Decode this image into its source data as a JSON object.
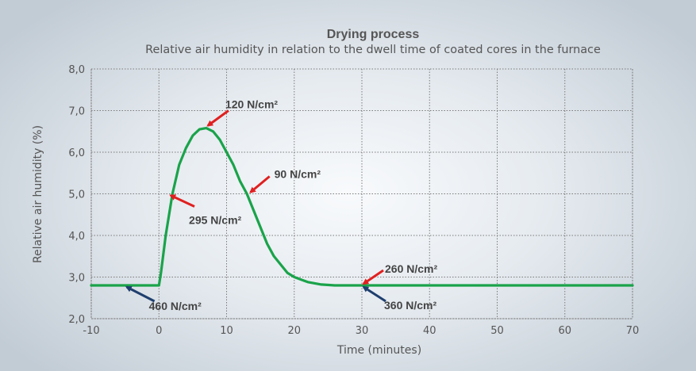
{
  "chart_data": {
    "type": "line",
    "title": "Drying process",
    "subtitle": "Relative air humidity in relation to the dwell time of coated cores in the furnace",
    "xlabel": "Time (minutes)",
    "ylabel": "Relative air humidity (%)",
    "xlim": [
      -10,
      70
    ],
    "ylim": [
      2.0,
      8.0
    ],
    "x_ticks": [
      -10,
      0,
      10,
      20,
      30,
      40,
      50,
      60,
      70
    ],
    "y_ticks": [
      "2,0",
      "3,0",
      "4,0",
      "5,0",
      "6,0",
      "7,0",
      "8,0"
    ],
    "grid": true,
    "line_color": "#1aa34a",
    "series": [
      {
        "x": [
          -10,
          0,
          0.3,
          1,
          2,
          3,
          4,
          5,
          6,
          7,
          8,
          9,
          10,
          11,
          12,
          13,
          14,
          15,
          16,
          17,
          18,
          19,
          20,
          22,
          24,
          26,
          30,
          40,
          50,
          60,
          70
        ],
        "y": [
          2.8,
          2.8,
          3.1,
          4.0,
          5.0,
          5.7,
          6.1,
          6.4,
          6.55,
          6.58,
          6.5,
          6.3,
          6.0,
          5.7,
          5.3,
          5.0,
          4.6,
          4.2,
          3.8,
          3.5,
          3.3,
          3.1,
          3.0,
          2.88,
          2.82,
          2.8,
          2.8,
          2.8,
          2.8,
          2.8,
          2.8
        ]
      }
    ],
    "annotations": [
      {
        "text": "460 N/cm²",
        "x": -5,
        "y": 2.8,
        "arrow_color": "#1f3f6e"
      },
      {
        "text": "295 N/cm²",
        "x": 1.5,
        "y": 5.0,
        "arrow_color": "#e02020"
      },
      {
        "text": "120 N/cm²",
        "x": 7,
        "y": 6.6,
        "arrow_color": "#e02020"
      },
      {
        "text": "90 N/cm²",
        "x": 13.3,
        "y": 5.0,
        "arrow_color": "#e02020"
      },
      {
        "text": "260 N/cm²",
        "x": 30,
        "y": 2.8,
        "arrow_color": "#e02020"
      },
      {
        "text": "360 N/cm²",
        "x": 30,
        "y": 2.8,
        "arrow_color": "#1f3f6e"
      }
    ]
  }
}
